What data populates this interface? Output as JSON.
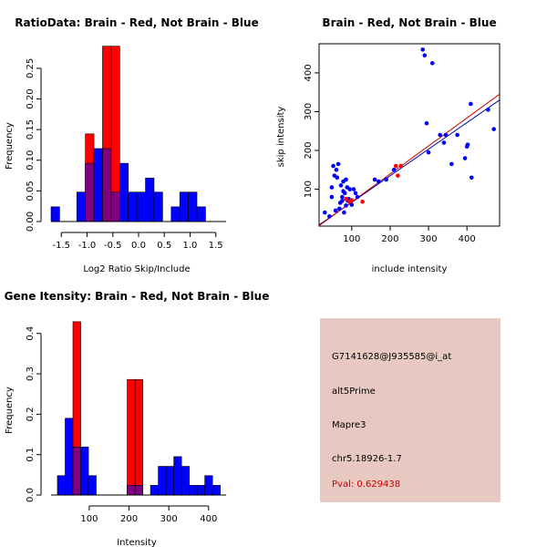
{
  "chart_data": [
    {
      "type": "histogram",
      "title": "RatioData: Brain - Red, Not Brain - Blue",
      "xlabel": "Log2 Ratio Skip/Include",
      "ylabel": "Frequency",
      "xlim": [
        -1.7,
        1.7
      ],
      "ylim": [
        0,
        0.29
      ],
      "xticks": [
        -1.5,
        -1.0,
        -0.5,
        0.0,
        0.5,
        1.0,
        1.5
      ],
      "xtick_labels": [
        "-1.5",
        "-1.0",
        "-0.5",
        "0.0",
        "0.5",
        "1.0",
        "1.5"
      ],
      "yticks": [
        0.0,
        0.05,
        0.1,
        0.15,
        0.2,
        0.25
      ],
      "ytick_labels": [
        "0.00",
        "0.05",
        "0.10",
        "0.15",
        "0.20",
        "0.25"
      ],
      "bin_start": -1.7,
      "bin_width": 0.1667,
      "series": [
        {
          "name": "Not Brain",
          "color": "#0000ff",
          "values": [
            0.024,
            0,
            0,
            0.048,
            0.095,
            0.119,
            0.119,
            0.048,
            0.095,
            0.048,
            0.048,
            0.071,
            0.048,
            0,
            0.024,
            0.048,
            0.048,
            0.024,
            0,
            0
          ]
        },
        {
          "name": "Brain",
          "color": "#ff0000",
          "values": [
            0,
            0,
            0,
            0,
            0.143,
            0,
            0.286,
            0.286,
            0,
            0,
            0,
            0,
            0,
            0,
            0,
            0,
            0,
            0,
            0,
            0
          ]
        }
      ]
    },
    {
      "type": "scatter",
      "title": "Brain - Red, Not Brain - Blue",
      "xlabel": "include intensity",
      "ylabel": "skip intensity",
      "xlim": [
        15,
        485
      ],
      "ylim": [
        5,
        475
      ],
      "xticks": [
        100,
        200,
        300,
        400
      ],
      "xtick_labels": [
        "100",
        "200",
        "300",
        "400"
      ],
      "yticks": [
        100,
        200,
        300,
        400
      ],
      "ytick_labels": [
        "100",
        "200",
        "300",
        "400"
      ],
      "series": [
        {
          "name": "Not Brain",
          "color": "#0000ff",
          "x": [
            30,
            42,
            48,
            52,
            55,
            58,
            62,
            65,
            68,
            70,
            72,
            75,
            78,
            80,
            82,
            85,
            88,
            90,
            95,
            100,
            105,
            110,
            115,
            160,
            170,
            190,
            210,
            285,
            290,
            295,
            300,
            310,
            330,
            340,
            345,
            360,
            375,
            395,
            400,
            402,
            410,
            412,
            455,
            470,
            48,
            60,
            75,
            85,
            92,
            78
          ],
          "y": [
            40,
            30,
            105,
            160,
            135,
            45,
            130,
            165,
            50,
            65,
            110,
            80,
            120,
            40,
            90,
            125,
            105,
            70,
            100,
            60,
            100,
            90,
            80,
            125,
            120,
            125,
            150,
            460,
            445,
            270,
            195,
            425,
            240,
            220,
            240,
            165,
            240,
            180,
            210,
            215,
            320,
            130,
            305,
            255,
            80,
            150,
            70,
            58,
            75,
            95
          ],
          "line": [
            [
              15,
              8
            ],
            [
              485,
              330
            ]
          ]
        },
        {
          "name": "Brain",
          "color": "#ff0000",
          "x": [
            85,
            95,
            100,
            128,
            215,
            220,
            228
          ],
          "y": [
            75,
            68,
            72,
            68,
            160,
            135,
            160
          ],
          "line": [
            [
              15,
              6
            ],
            [
              485,
              345
            ]
          ]
        }
      ]
    },
    {
      "type": "histogram",
      "title": "Gene Itensity: Brain - Red, Not Brain - Blue",
      "xlabel": "Intensity",
      "ylabel": "Frequency",
      "xlim": [
        4,
        444
      ],
      "ylim": [
        0,
        0.44
      ],
      "xticks": [
        100,
        200,
        300,
        400
      ],
      "xtick_labels": [
        "100",
        "200",
        "300",
        "400"
      ],
      "yticks": [
        0.0,
        0.1,
        0.2,
        0.3,
        0.4
      ],
      "ytick_labels": [
        "0.0",
        "0.1",
        "0.2",
        "0.3",
        "0.4"
      ],
      "bin_start": 20,
      "bin_width": 19.5,
      "series": [
        {
          "name": "Not Brain",
          "color": "#0000ff",
          "values": [
            0.048,
            0.19,
            0.119,
            0.119,
            0.048,
            0,
            0,
            0,
            0,
            0.024,
            0.024,
            0,
            0.024,
            0.071,
            0.071,
            0.095,
            0.071,
            0.024,
            0.024,
            0.048,
            0.024
          ]
        },
        {
          "name": "Brain",
          "color": "#ff0000",
          "values": [
            0,
            0,
            0.429,
            0,
            0,
            0,
            0,
            0,
            0,
            0.286,
            0.286,
            0,
            0,
            0,
            0,
            0,
            0,
            0,
            0,
            0,
            0
          ]
        }
      ]
    }
  ],
  "info_panel": {
    "background": "#e8c9c1",
    "probe": "G7141628@J935585@i_at",
    "event_type": "alt5Prime",
    "gene": "Mapre3",
    "location": "chr5.18926-1.7",
    "pval": "Pval: 0.629438",
    "pval_color": "#c00000"
  }
}
